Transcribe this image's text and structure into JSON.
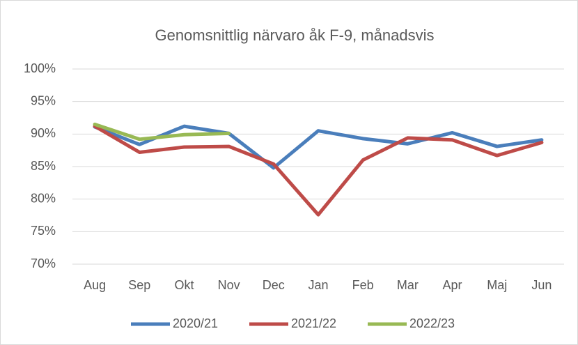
{
  "chart_data": {
    "type": "line",
    "title": "Genomsnittlig närvaro åk F-9, månadsvis",
    "categories": [
      "Aug",
      "Sep",
      "Okt",
      "Nov",
      "Dec",
      "Jan",
      "Feb",
      "Mar",
      "Apr",
      "Maj",
      "Jun"
    ],
    "series": [
      {
        "name": "2020/21",
        "color": "#4a7ebb",
        "values": [
          91.1,
          88.4,
          91.2,
          90.1,
          84.8,
          90.5,
          89.3,
          88.5,
          90.2,
          88.1,
          89.1
        ]
      },
      {
        "name": "2021/22",
        "color": "#be4b48",
        "values": [
          91.2,
          87.2,
          88.0,
          88.1,
          85.4,
          77.6,
          86.0,
          89.4,
          89.1,
          86.7,
          88.7
        ]
      },
      {
        "name": "2022/23",
        "color": "#98b954",
        "values": [
          91.5,
          89.2,
          89.9,
          90.1,
          null,
          null,
          null,
          null,
          null,
          null,
          null
        ]
      }
    ],
    "ylim": [
      70,
      100
    ],
    "yticks": [
      {
        "value": 70,
        "label": "70%"
      },
      {
        "value": 75,
        "label": "75%"
      },
      {
        "value": 80,
        "label": "80%"
      },
      {
        "value": 85,
        "label": "85%"
      },
      {
        "value": 90,
        "label": "90%"
      },
      {
        "value": 95,
        "label": "95%"
      },
      {
        "value": 100,
        "label": "100%"
      }
    ],
    "grid": true,
    "legend": "bottom"
  }
}
